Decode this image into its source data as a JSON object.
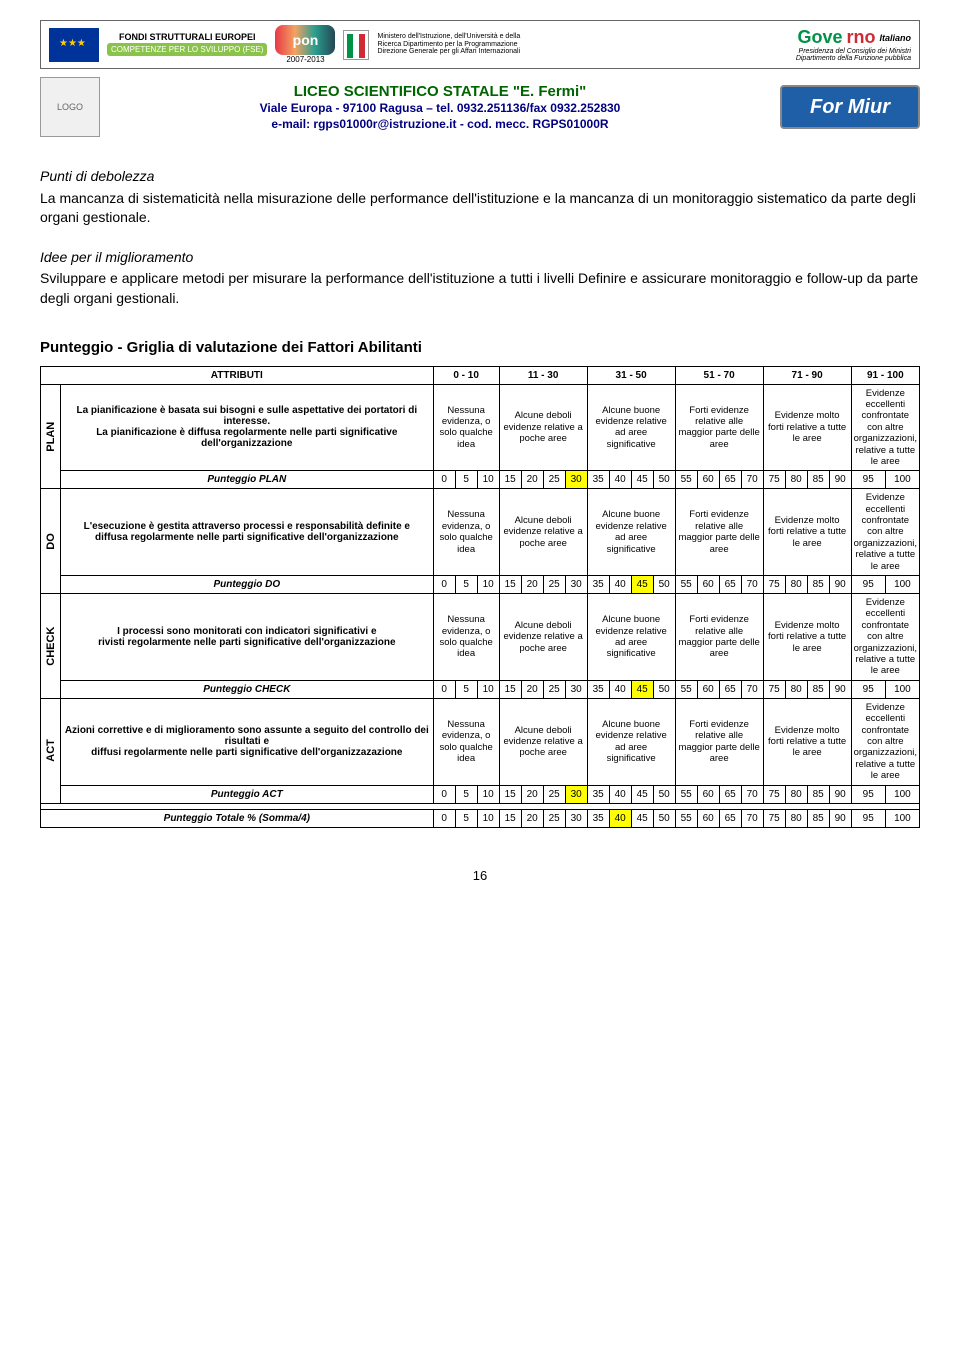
{
  "banner": {
    "fondi": "FONDI\nSTRUTTURALI\nEUROPEI",
    "competenze": "COMPETENZE PER LO SVILUPPO (FSE)",
    "pon": "pon",
    "pon_years": "2007-2013",
    "ministry": "Ministero dell'Istruzione, dell'Università e della Ricerca\nDipartimento per la Programmazione\nDirezione Generale per gli Affari Internazionali",
    "gov": "Governo Italiano",
    "gov_sub": "Presidenza del Consiglio dei Ministri",
    "gov_sub2": "Dipartimento della Funzione pubblica"
  },
  "school": {
    "title": "LICEO SCIENTIFICO STATALE \"E. Fermi\"",
    "line1": "Viale Europa - 97100 Ragusa – tel. 0932.251136/fax 0932.252830",
    "line2": "e-mail: rgps01000r@istruzione.it - cod. mecc. RGPS01000R",
    "formiur": "For Miur"
  },
  "sections": {
    "punti_title": "Punti di debolezza",
    "punti_body": "La mancanza di sistematicità nella misurazione delle performance dell'istituzione e la mancanza di un monitoraggio sistematico da parte degli organi gestionale.",
    "idee_title": "Idee per il miglioramento",
    "idee_body": "Sviluppare e applicare metodi per misurare la performance dell'istituzione a tutti i livelli Definire e assicurare monitoraggio e follow-up da parte degli organi gestionali."
  },
  "grid_title": "Punteggio - Griglia di valutazione dei Fattori Abilitanti",
  "headers": {
    "attributi": "ATTRIBUTI",
    "ranges": [
      "0 - 10",
      "11 - 30",
      "31 - 50",
      "51 - 70",
      "71 - 90",
      "91 - 100"
    ]
  },
  "descriptors": {
    "c0": "Nessuna evidenza, o solo qualche idea",
    "c1": "Alcune deboli evidenze relative a poche aree",
    "c2": "Alcune buone evidenze relative ad aree significative",
    "c3": "Forti evidenze relative alle maggior parte delle aree",
    "c4": "Evidenze molto forti relative a tutte le aree",
    "c5": "Evidenze eccellenti confrontate con altre organizzazioni, relative a tutte le aree"
  },
  "rows": {
    "plan": {
      "label": "PLAN",
      "attr": "La pianificazione è basata sui bisogni e sulle aspettative dei portatori di interesse.\nLa pianificazione è diffusa regolarmente nelle parti significative dell'organizzazione",
      "score_label": "Punteggio PLAN",
      "highlight": 30
    },
    "do": {
      "label": "DO",
      "attr": "L'esecuzione è gestita attraverso processi e responsabilità definite e\ndiffusa regolarmente nelle parti significative dell'organizzazione",
      "score_label": "Punteggio DO",
      "highlight": 45
    },
    "check": {
      "label": "CHECK",
      "attr": "I processi sono monitorati con indicatori significativi e\nrivisti regolarmente nelle parti significative dell'organizzazione",
      "score_label": "Punteggio CHECK",
      "highlight": 45
    },
    "act": {
      "label": "ACT",
      "attr": "Azioni correttive e di miglioramento sono assunte a seguito del controllo dei risultati e\ndiffusi regolarmente nelle parti significative dell'organizzazazione",
      "score_label": "Punteggio ACT",
      "highlight": 30
    }
  },
  "scores": [
    0,
    5,
    10,
    15,
    20,
    25,
    30,
    35,
    40,
    45,
    50,
    55,
    60,
    65,
    70,
    75,
    80,
    85,
    90,
    95,
    100
  ],
  "totale": {
    "label": "Punteggio Totale % (Somma/4)",
    "highlight": 40
  },
  "page_number": "16",
  "colors": {
    "highlight": "#ffff00",
    "dark_green": "#006400",
    "navy": "#000080",
    "formiur_bg": "#1e5fa8"
  }
}
